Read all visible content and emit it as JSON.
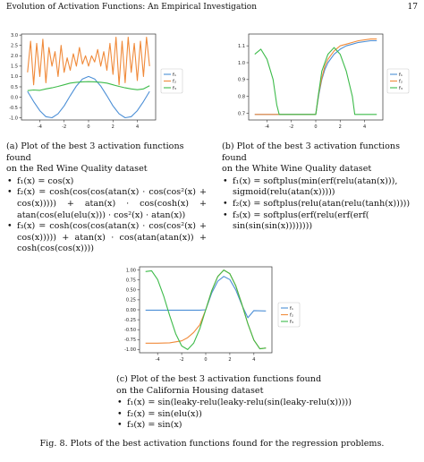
{
  "header": {
    "title": "Evolution of Activation Functions: An Empirical Investigation",
    "page": "17"
  },
  "panels": {
    "a": {
      "caption_line1": "(a) Plot of the best 3 activation functions found",
      "caption_line2": "on the Red Wine Quality dataset",
      "items": [
        "f₁(x) = cos(x)",
        "f₂(x) = cosh(cos(cos(atan(x) · cos(cos²(x) +",
        "cos(x)))))  +  atan(x)  ·  cos(cosh(x)  +",
        "atan(cos(elu(elu(x))) · cos²(x) · atan(x))",
        "f₃(x) = cosh(cos(cos(atan(x) · cos(cos²(x) +",
        "cos(x))))) + atan(x) · cos(atan(atan(x)) +",
        "cosh(cos(cos(x))))"
      ]
    },
    "b": {
      "caption_line1": "(b) Plot of the best 3 activation functions found",
      "caption_line2": "on the White Wine Quality dataset",
      "items": [
        "f₁(x) = softplus(min(erf(relu(atan(x))),",
        "sigmoid(relu(atan(x)))))",
        "f₂(x) = softplus(relu(atan(relu(tanh(x)))))",
        "f₃(x) = softplus(erf(relu(erf(erf(",
        "sin(sin(sin(x))))))))"
      ]
    },
    "c": {
      "caption_line1": "(c) Plot of the best 3 activation functions found",
      "caption_line2": "on the California Housing dataset",
      "items": [
        "f₁(x) = sin(leaky-relu(leaky-relu(sin(leaky-relu(x)))))",
        "f₂(x) = sin(elu(x))",
        "f₃(x) = sin(x)"
      ]
    }
  },
  "figure_caption": "Fig. 8.  Plots of the best activation functions found for the regression problems.",
  "chart_data": [
    {
      "type": "line",
      "panel": "a",
      "xlim": [
        -5.5,
        5.5
      ],
      "ylim": [
        -1.1,
        3.05
      ],
      "xticks": [
        -4,
        -2,
        0,
        2,
        4
      ],
      "yticks": [
        -1.0,
        -0.5,
        0.0,
        0.5,
        1.0,
        1.5,
        2.0,
        2.5,
        3.0
      ],
      "ytick_labels": [
        "-1.0",
        "-0.5",
        "0.0",
        "0.5",
        "1.0",
        "1.5",
        "2.0",
        "2.5",
        "3.0"
      ],
      "legend": [
        "f₁",
        "f₂",
        "f₃"
      ],
      "legend_position": "right",
      "colors": [
        "#4c8fd6",
        "#f08a3a",
        "#3dbb4a"
      ],
      "series": [
        {
          "x": [
            -5,
            -4.5,
            -4,
            -3.5,
            -3,
            -2.5,
            -2,
            -1.5,
            -1,
            -0.5,
            0,
            0.5,
            1,
            1.5,
            2,
            2.5,
            3,
            3.5,
            4,
            4.5,
            5
          ],
          "y": [
            0.28,
            -0.21,
            -0.65,
            -0.94,
            -0.99,
            -0.8,
            -0.42,
            0.07,
            0.54,
            0.88,
            1.0,
            0.88,
            0.54,
            0.07,
            -0.42,
            -0.8,
            -0.99,
            -0.94,
            -0.65,
            -0.21,
            0.28
          ]
        },
        {
          "x": [
            -5,
            -4.75,
            -4.5,
            -4.25,
            -4,
            -3.75,
            -3.5,
            -3.25,
            -3,
            -2.75,
            -2.5,
            -2.25,
            -2,
            -1.75,
            -1.5,
            -1.25,
            -1,
            -0.75,
            -0.5,
            -0.25,
            0,
            0.25,
            0.5,
            0.75,
            1,
            1.25,
            1.5,
            1.75,
            2,
            2.25,
            2.5,
            2.75,
            3,
            3.25,
            3.5,
            3.75,
            4,
            4.25,
            4.5,
            4.75,
            5
          ],
          "y": [
            1.2,
            2.7,
            0.6,
            2.6,
            1.0,
            2.8,
            0.7,
            2.4,
            1.5,
            2.2,
            1.0,
            2.5,
            1.2,
            1.9,
            1.3,
            2.1,
            1.5,
            2.4,
            1.6,
            2.0,
            1.5,
            2.0,
            1.7,
            2.3,
            1.5,
            2.2,
            1.3,
            2.6,
            1.1,
            2.9,
            0.6,
            2.7,
            0.7,
            2.9,
            1.2,
            2.6,
            0.8,
            2.7,
            1.0,
            2.9,
            1.5
          ]
        },
        {
          "x": [
            -5,
            -4.5,
            -4,
            -3.5,
            -3,
            -2.5,
            -2,
            -1.5,
            -1,
            -0.5,
            0,
            0.5,
            1,
            1.5,
            2,
            2.5,
            3,
            3.5,
            4,
            4.5,
            5
          ],
          "y": [
            0.32,
            0.35,
            0.33,
            0.4,
            0.45,
            0.52,
            0.6,
            0.68,
            0.72,
            0.74,
            0.75,
            0.74,
            0.72,
            0.68,
            0.6,
            0.52,
            0.45,
            0.4,
            0.36,
            0.4,
            0.55
          ]
        }
      ]
    },
    {
      "type": "line",
      "panel": "b",
      "xlim": [
        -5.5,
        5.5
      ],
      "ylim": [
        0.66,
        1.17
      ],
      "xticks": [
        -4,
        -2,
        0,
        2,
        4
      ],
      "yticks": [
        0.7,
        0.8,
        0.9,
        1.0,
        1.1
      ],
      "ytick_labels": [
        "0.7",
        "0.8",
        "0.9",
        "1.0",
        "1.1"
      ],
      "legend": [
        "f₁",
        "f₂",
        "f₃"
      ],
      "legend_position": "right",
      "colors": [
        "#4c8fd6",
        "#f08a3a",
        "#3dbb4a"
      ],
      "series": [
        {
          "x": [
            -5,
            -3,
            0,
            0.25,
            0.5,
            0.75,
            1,
            1.5,
            2,
            2.5,
            3,
            3.5,
            4,
            4.5,
            5
          ],
          "y": [
            0.693,
            0.693,
            0.693,
            0.81,
            0.9,
            0.96,
            1.0,
            1.05,
            1.08,
            1.1,
            1.11,
            1.12,
            1.125,
            1.13,
            1.13
          ]
        },
        {
          "x": [
            -5,
            -3,
            0,
            0.25,
            0.5,
            0.75,
            1,
            1.5,
            2,
            2.5,
            3,
            3.5,
            4,
            4.5,
            5
          ],
          "y": [
            0.693,
            0.693,
            0.693,
            0.82,
            0.91,
            0.98,
            1.02,
            1.07,
            1.1,
            1.11,
            1.12,
            1.13,
            1.135,
            1.14,
            1.14
          ]
        },
        {
          "x": [
            -5,
            -4.5,
            -4,
            -3.5,
            -3.2,
            -3.0,
            -2.5,
            -2,
            -1,
            0,
            0.2,
            0.5,
            1,
            1.5,
            2,
            2.5,
            3,
            3.2,
            3.5,
            4,
            5
          ],
          "y": [
            1.05,
            1.08,
            1.02,
            0.9,
            0.75,
            0.693,
            0.693,
            0.693,
            0.693,
            0.693,
            0.8,
            0.95,
            1.05,
            1.09,
            1.05,
            0.95,
            0.8,
            0.693,
            0.693,
            0.693,
            0.693
          ]
        }
      ]
    },
    {
      "type": "line",
      "panel": "c",
      "xlim": [
        -5.5,
        5.5
      ],
      "ylim": [
        -1.08,
        1.08
      ],
      "xticks": [
        -4,
        -2,
        0,
        2,
        4
      ],
      "yticks": [
        -1.0,
        -0.75,
        -0.5,
        -0.25,
        0.0,
        0.25,
        0.5,
        0.75,
        1.0
      ],
      "ytick_labels": [
        "-1.00",
        "-0.75",
        "-0.50",
        "-0.25",
        "0.00",
        "0.25",
        "0.50",
        "0.75",
        "1.00"
      ],
      "legend": [
        "f₁",
        "f₂",
        "f₃"
      ],
      "legend_position": "right",
      "colors": [
        "#4c8fd6",
        "#f08a3a",
        "#3dbb4a"
      ],
      "series": [
        {
          "x": [
            -5,
            -3,
            -1,
            -0.5,
            0,
            0.5,
            1,
            1.5,
            2,
            2.5,
            3,
            3.5,
            4,
            5
          ],
          "y": [
            -0.01,
            -0.01,
            -0.01,
            -0.01,
            0.0,
            0.42,
            0.72,
            0.84,
            0.76,
            0.5,
            0.12,
            -0.2,
            -0.02,
            -0.03
          ]
        },
        {
          "x": [
            -5,
            -4,
            -3,
            -2,
            -1.5,
            -1,
            -0.5,
            0,
            0.5,
            1,
            1.5,
            2,
            2.5,
            3,
            3.5,
            4,
            4.5,
            5
          ],
          "y": [
            -0.84,
            -0.84,
            -0.83,
            -0.78,
            -0.7,
            -0.57,
            -0.38,
            0.0,
            0.48,
            0.84,
            1.0,
            0.91,
            0.6,
            0.14,
            -0.35,
            -0.76,
            -0.98,
            -0.96
          ]
        },
        {
          "x": [
            -5,
            -4.5,
            -4,
            -3.5,
            -3,
            -2.5,
            -2,
            -1.5,
            -1,
            -0.5,
            0,
            0.5,
            1,
            1.5,
            2,
            2.5,
            3,
            3.5,
            4,
            4.5,
            5
          ],
          "y": [
            0.96,
            0.98,
            0.76,
            0.35,
            -0.14,
            -0.6,
            -0.91,
            -1.0,
            -0.84,
            -0.48,
            0.0,
            0.48,
            0.84,
            1.0,
            0.91,
            0.6,
            0.14,
            -0.35,
            -0.76,
            -0.98,
            -0.96
          ]
        }
      ]
    }
  ]
}
